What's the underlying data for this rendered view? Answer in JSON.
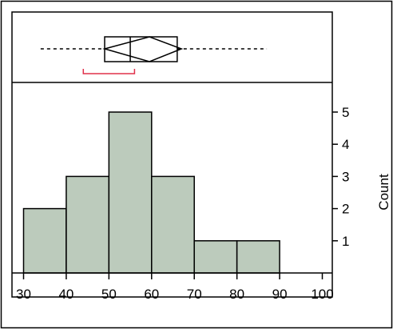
{
  "chart_data": {
    "type": "bar",
    "title": "",
    "xlabel": "",
    "ylabel": "Count",
    "x_ticks": [
      "30",
      "40",
      "50",
      "60",
      "70",
      "80",
      "90",
      "100"
    ],
    "y_ticks": [
      "1",
      "2",
      "3",
      "4",
      "5"
    ],
    "xlim": [
      30,
      100
    ],
    "ylim": [
      0,
      5.5
    ],
    "bins": [
      {
        "from": 30,
        "to": 40,
        "count": 2
      },
      {
        "from": 40,
        "to": 50,
        "count": 3
      },
      {
        "from": 50,
        "to": 60,
        "count": 5
      },
      {
        "from": 60,
        "to": 70,
        "count": 3
      },
      {
        "from": 70,
        "to": 80,
        "count": 1
      },
      {
        "from": 80,
        "to": 90,
        "count": 1
      }
    ],
    "box_plot": {
      "whisker_low": 34,
      "q1": 49,
      "median": 55,
      "q3": 66,
      "whisker_high": 87,
      "mean_diamond": {
        "low": 49,
        "mean": 59.5,
        "high": 67
      },
      "shortest_half": {
        "from": 44,
        "to": 56
      }
    },
    "grid": false,
    "colors": {
      "bar_fill": "#bccbbc",
      "bar_stroke": "#000000",
      "shortest_half": "#e0304a"
    }
  }
}
